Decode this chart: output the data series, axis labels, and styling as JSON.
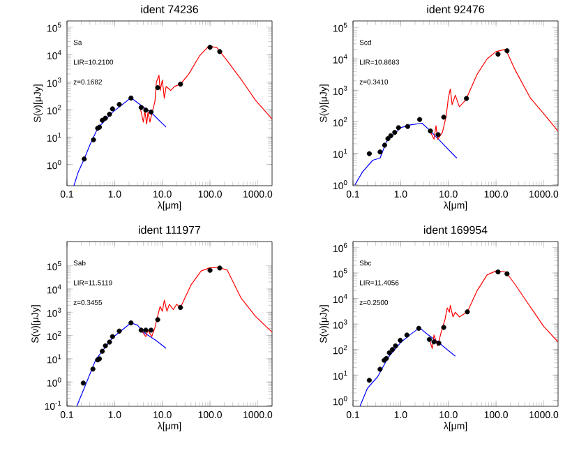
{
  "chart_data": [
    {
      "type": "line",
      "title": "ident  74236",
      "xlabel": "λ[μm]",
      "ylabel": "S(ν)[μJy]",
      "log": "xy",
      "annotations": [
        "Sa",
        "LIR=10.2100",
        "z=0.1682"
      ],
      "xlim": [
        0.1,
        2000
      ],
      "ylim": [
        0.17,
        170000
      ],
      "xticks": [
        {
          "value": 0.1,
          "label": "0.1"
        },
        {
          "value": 1,
          "label": "1.0"
        },
        {
          "value": 10,
          "label": "10.0"
        },
        {
          "value": 100,
          "label": "100.0"
        },
        {
          "value": 1000,
          "label": "1000.0"
        }
      ],
      "yticks": [
        {
          "value": 1,
          "label": "10$^{0}$"
        },
        {
          "value": 10,
          "label": "10$^{1}$"
        },
        {
          "value": 100,
          "label": "10$^{2}$"
        },
        {
          "value": 1000,
          "label": "10$^{3}$"
        },
        {
          "value": 10000,
          "label": "10$^{4}$"
        },
        {
          "value": 100000,
          "label": "10$^{5}$"
        }
      ],
      "series": [
        {
          "color": "#0000ff",
          "x": [
            0.14,
            0.17,
            0.23,
            0.3,
            0.44,
            0.9,
            2.2,
            3,
            6,
            12
          ],
          "values": [
            0.17,
            0.5,
            1.6,
            5,
            21,
            80,
            270,
            180,
            75,
            23
          ]
        },
        {
          "color": "#ff0000",
          "x": [
            3.5,
            4,
            4.3,
            4.7,
            5,
            5.5,
            6,
            7,
            7.5,
            8.5,
            9,
            10,
            11,
            12,
            15,
            18,
            24,
            36,
            60,
            95,
            140,
            230,
            450,
            900,
            2000
          ],
          "values": [
            100,
            35,
            90,
            30,
            80,
            35,
            70,
            200,
            1000,
            1800,
            500,
            1200,
            260,
            700,
            500,
            700,
            850,
            2000,
            9000,
            21000,
            18000,
            6000,
            1260,
            220,
            46
          ]
        },
        {
          "type": "scatter",
          "marker": "circle",
          "color": "#000000",
          "x": [
            0.23,
            0.36,
            0.44,
            0.48,
            0.55,
            0.64,
            0.78,
            0.9,
            1.25,
            2.2,
            3.6,
            4.5,
            5.8,
            8,
            24,
            100,
            160
          ],
          "values": [
            1.6,
            8,
            21,
            23,
            41,
            49,
            68,
            107,
            155,
            265,
            120,
            96,
            82,
            630,
            850,
            18600,
            13000
          ]
        }
      ]
    },
    {
      "type": "line",
      "title": "ident  92476",
      "xlabel": "λ[μm]",
      "ylabel": "S(ν)[μJy]",
      "log": "xy",
      "annotations": [
        "Scd",
        "LIR=10.8683",
        "z=0.3410"
      ],
      "xlim": [
        0.1,
        2000
      ],
      "ylim": [
        0.93,
        160000
      ],
      "xticks": [
        {
          "value": 0.1,
          "label": "0.1"
        },
        {
          "value": 1,
          "label": "1.0"
        },
        {
          "value": 10,
          "label": "10.0"
        },
        {
          "value": 100,
          "label": "100.0"
        },
        {
          "value": 1000,
          "label": "1000.0"
        }
      ],
      "yticks": [
        {
          "value": 1,
          "label": "10$^{0}$"
        },
        {
          "value": 10,
          "label": "10$^{1}$"
        },
        {
          "value": 100,
          "label": "10$^{2}$"
        },
        {
          "value": 1000,
          "label": "10$^{3}$"
        },
        {
          "value": 10000,
          "label": "10$^{4}$"
        },
        {
          "value": 100000,
          "label": "10$^{5}$"
        }
      ],
      "series": [
        {
          "color": "#0000ff",
          "x": [
            0.11,
            0.16,
            0.26,
            0.37,
            0.5,
            1,
            1.6,
            2.8,
            4,
            7,
            15
          ],
          "values": [
            1,
            2.6,
            6,
            7,
            23,
            65,
            80,
            90,
            55,
            23,
            7
          ]
        },
        {
          "color": "#ff0000",
          "x": [
            4,
            5,
            5.5,
            6,
            7.5,
            9,
            10,
            11,
            12,
            14,
            17,
            21,
            24,
            40,
            65,
            100,
            160,
            250,
            520,
            1000,
            2000
          ],
          "values": [
            55,
            28,
            75,
            28,
            46,
            150,
            580,
            1100,
            350,
            700,
            300,
            420,
            550,
            3200,
            10000,
            17000,
            20000,
            4500,
            580,
            180,
            50
          ]
        },
        {
          "type": "scatter",
          "marker": "circle",
          "color": "#000000",
          "x": [
            0.22,
            0.37,
            0.46,
            0.54,
            0.62,
            0.75,
            0.9,
            1.4,
            2.5,
            4.2,
            6.1,
            8,
            24,
            110,
            170
          ],
          "values": [
            9.7,
            11,
            18,
            29,
            36,
            46,
            65,
            71,
            118,
            51,
            39,
            140,
            550,
            14000,
            18000
          ]
        }
      ]
    },
    {
      "type": "line",
      "title": "ident  111977",
      "xlabel": "λ[μm]",
      "ylabel": "S(ν)[μJy]",
      "log": "xy",
      "annotations": [
        "Sab",
        "LIR=11.5119",
        "z=0.3455"
      ],
      "xlim": [
        0.1,
        2000
      ],
      "ylim": [
        0.09,
        1100000
      ],
      "xticks": [
        {
          "value": 0.1,
          "label": "0.1"
        },
        {
          "value": 1,
          "label": "1.0"
        },
        {
          "value": 10,
          "label": "10.0"
        },
        {
          "value": 100,
          "label": "100.0"
        },
        {
          "value": 1000,
          "label": "1000.0"
        }
      ],
      "yticks": [
        {
          "value": 0.1,
          "label": "10$^{-1}$"
        },
        {
          "value": 1,
          "label": "10$^{0}$"
        },
        {
          "value": 10,
          "label": "10$^{1}$"
        },
        {
          "value": 100,
          "label": "10$^{2}$"
        },
        {
          "value": 1000,
          "label": "10$^{3}$"
        },
        {
          "value": 10000,
          "label": "10$^{4}$"
        },
        {
          "value": 100000,
          "label": "10$^{5}$"
        }
      ],
      "series": [
        {
          "color": "#0000ff",
          "x": [
            0.16,
            0.23,
            0.4,
            0.9,
            2.2,
            3,
            4,
            7.5,
            12
          ],
          "values": [
            0.09,
            0.54,
            9,
            80,
            350,
            280,
            140,
            60,
            28
          ]
        },
        {
          "color": "#ff0000",
          "x": [
            3.6,
            4.5,
            5,
            6,
            7,
            8,
            9,
            10,
            11,
            12.5,
            14,
            17,
            20,
            24,
            40,
            65,
            95,
            150,
            230,
            450,
            900,
            2000
          ],
          "values": [
            170,
            90,
            170,
            90,
            220,
            700,
            1800,
            1100,
            3300,
            1100,
            2200,
            1300,
            2200,
            1600,
            15000,
            60000,
            80000,
            85000,
            65000,
            4000,
            670,
            140
          ]
        },
        {
          "type": "scatter",
          "marker": "circle",
          "color": "#000000",
          "x": [
            0.22,
            0.35,
            0.44,
            0.48,
            0.55,
            0.64,
            0.78,
            0.9,
            1.25,
            2.2,
            3.6,
            4.5,
            5.8,
            8,
            24,
            100,
            160
          ],
          "values": [
            0.9,
            3.6,
            9,
            10,
            21,
            36,
            52,
            90,
            155,
            350,
            170,
            170,
            170,
            480,
            1600,
            64000,
            80000
          ]
        }
      ]
    },
    {
      "type": "line",
      "title": "ident  169954",
      "xlabel": "λ[μm]",
      "ylabel": "S(ν)[μJy]",
      "log": "xy",
      "annotations": [
        "Sbc",
        "LIR=11.4056",
        "z=0.2500"
      ],
      "xlim": [
        0.1,
        2000
      ],
      "ylim": [
        0.6,
        1700000
      ],
      "xticks": [
        {
          "value": 0.1,
          "label": "0.1"
        },
        {
          "value": 1,
          "label": "1.0"
        },
        {
          "value": 10,
          "label": "10.0"
        },
        {
          "value": 100,
          "label": "100.0"
        },
        {
          "value": 1000,
          "label": "1000.0"
        }
      ],
      "yticks": [
        {
          "value": 1,
          "label": "10$^{0}$"
        },
        {
          "value": 10,
          "label": "10$^{1}$"
        },
        {
          "value": 100,
          "label": "10$^{2}$"
        },
        {
          "value": 1000,
          "label": "10$^{3}$"
        },
        {
          "value": 10000,
          "label": "10$^{4}$"
        },
        {
          "value": 100000,
          "label": "10$^{5}$"
        },
        {
          "value": 1000000,
          "label": "10$^{6}$"
        }
      ],
      "series": [
        {
          "color": "#0000ff",
          "x": [
            0.14,
            0.2,
            0.33,
            0.55,
            1,
            1.6,
            2.5,
            3.4,
            6,
            14
          ],
          "values": [
            0.6,
            3,
            8.7,
            50,
            190,
            390,
            720,
            440,
            200,
            55
          ]
        },
        {
          "color": "#ff0000",
          "x": [
            4,
            4.6,
            5,
            6,
            7,
            8.5,
            9.5,
            10.5,
            11,
            12.5,
            14,
            17,
            20,
            25,
            40,
            65,
            100,
            160,
            250,
            520,
            1000,
            2000
          ],
          "values": [
            250,
            110,
            370,
            140,
            450,
            1500,
            4300,
            2900,
            5300,
            1900,
            2900,
            1900,
            2300,
            3000,
            20000,
            85000,
            120000,
            110000,
            36000,
            4800,
            800,
            200
          ]
        },
        {
          "type": "scatter",
          "marker": "circle",
          "color": "#000000",
          "x": [
            0.22,
            0.37,
            0.45,
            0.5,
            0.58,
            0.67,
            0.78,
            0.98,
            1.35,
            2.4,
            4,
            5,
            6.3,
            8,
            25,
            110,
            170
          ],
          "values": [
            6.3,
            17,
            38,
            45,
            75,
            100,
            140,
            230,
            370,
            680,
            250,
            200,
            180,
            740,
            3000,
            110000,
            93000
          ]
        }
      ]
    }
  ]
}
